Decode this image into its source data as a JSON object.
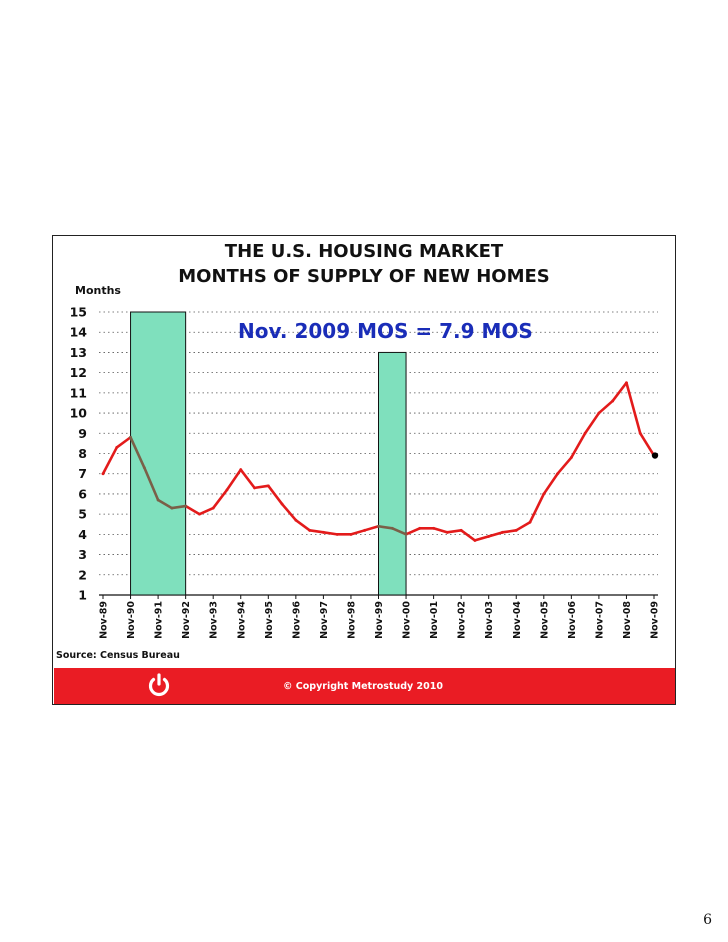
{
  "page_number": "6",
  "source": "Source: Census Bureau",
  "copyright": "© Copyright Metrostudy 2010",
  "colors": {
    "line_main": "#e31b1b",
    "line_recession": "#7a6048",
    "recession_fill": "#7fe0bd",
    "footer_bar": "#ea1c24",
    "annotation": "#1a2db8"
  },
  "icons": {
    "logo": "power-icon"
  },
  "chart_data": {
    "type": "line",
    "title": [
      "THE U.S. HOUSING MARKET",
      "MONTHS OF SUPPLY OF NEW HOMES"
    ],
    "ylabel": "Months",
    "xlabel": "",
    "ylim": [
      1,
      15
    ],
    "yticks": [
      "1",
      "2",
      "3",
      "4",
      "5",
      "6",
      "7",
      "8",
      "9",
      "10",
      "11",
      "12",
      "13",
      "14",
      "15"
    ],
    "x_ticks": [
      "Nov-89",
      "Nov-90",
      "Nov-91",
      "Nov-92",
      "Nov-93",
      "Nov-94",
      "Nov-95",
      "Nov-96",
      "Nov-97",
      "Nov-98",
      "Nov-99",
      "Nov-00",
      "Nov-01",
      "Nov-02",
      "Nov-03",
      "Nov-04",
      "Nov-05",
      "Nov-06",
      "Nov-07",
      "Nov-08",
      "Nov-09"
    ],
    "grid": "horizontal dotted",
    "annotation": "Nov. 2009 MOS = 7.9 MOS",
    "recession_shading": [
      {
        "start": "Nov-90",
        "end": "Nov-92",
        "top": 15
      },
      {
        "start": "Nov-99",
        "end": "Nov-00",
        "top": 13
      }
    ],
    "series": [
      {
        "x": [
          "Nov-89",
          "May-90",
          "Nov-90",
          "May-91",
          "Nov-91",
          "May-92",
          "Nov-92",
          "May-93",
          "Nov-93",
          "May-94",
          "Nov-94",
          "May-95",
          "Nov-95",
          "May-96",
          "Nov-96",
          "May-97",
          "Nov-97",
          "May-98",
          "Nov-98",
          "May-99",
          "Nov-99",
          "May-00",
          "Nov-00",
          "May-01",
          "Nov-01",
          "May-02",
          "Nov-02",
          "May-03",
          "Nov-03",
          "May-04",
          "Nov-04",
          "May-05",
          "Nov-05",
          "May-06",
          "Nov-06",
          "May-07",
          "Nov-07",
          "May-08",
          "Nov-08",
          "May-09",
          "Nov-09"
        ],
        "values": [
          7.0,
          8.3,
          8.8,
          7.3,
          5.7,
          5.3,
          5.4,
          5.0,
          5.3,
          6.2,
          7.2,
          6.3,
          6.4,
          5.5,
          4.7,
          4.2,
          4.1,
          4.0,
          4.0,
          4.2,
          4.4,
          4.3,
          4.0,
          4.3,
          4.3,
          4.1,
          4.2,
          3.7,
          3.9,
          4.1,
          4.2,
          4.6,
          6.0,
          7.0,
          7.8,
          9.0,
          10.0,
          10.6,
          11.5,
          9.0,
          7.9
        ]
      }
    ]
  }
}
